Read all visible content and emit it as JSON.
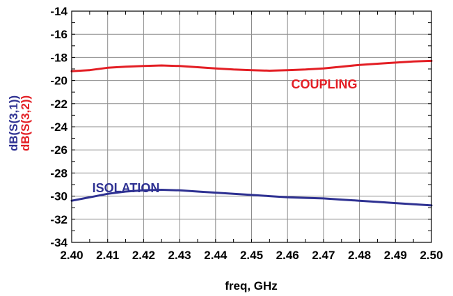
{
  "chart_data": {
    "type": "line",
    "xlabel": "freq, GHz",
    "ylabel_series": [
      {
        "text": "dB(S(3,1))",
        "color": "#2e3192"
      },
      {
        "text": "dB(S(3,2))",
        "color": "#e31e24"
      }
    ],
    "xlim": [
      2.4,
      2.5
    ],
    "ylim": [
      -34,
      -14
    ],
    "xticks": [
      2.4,
      2.41,
      2.42,
      2.43,
      2.44,
      2.45,
      2.46,
      2.47,
      2.48,
      2.49,
      2.5
    ],
    "xtick_labels": [
      "2.40",
      "2.41",
      "2.42",
      "2.43",
      "2.44",
      "2.45",
      "2.46",
      "2.47",
      "2.48",
      "2.49",
      "2.50"
    ],
    "yticks": [
      -14,
      -16,
      -18,
      -20,
      -22,
      -24,
      -26,
      -28,
      -30,
      -32,
      -34
    ],
    "ytick_labels": [
      "-14",
      "-16",
      "-18",
      "-20",
      "-22",
      "-24",
      "-26",
      "-28",
      "-30",
      "-32",
      "-34"
    ],
    "grid": true,
    "series": [
      {
        "name": "COUPLING",
        "color": "#e31e24",
        "x": [
          2.4,
          2.405,
          2.41,
          2.415,
          2.42,
          2.425,
          2.43,
          2.435,
          2.44,
          2.445,
          2.45,
          2.455,
          2.46,
          2.465,
          2.47,
          2.475,
          2.48,
          2.485,
          2.49,
          2.495,
          2.5
        ],
        "y": [
          -19.2,
          -19.1,
          -18.9,
          -18.8,
          -18.75,
          -18.7,
          -18.75,
          -18.85,
          -18.95,
          -19.05,
          -19.1,
          -19.15,
          -19.1,
          -19.05,
          -18.95,
          -18.8,
          -18.65,
          -18.55,
          -18.45,
          -18.35,
          -18.3
        ]
      },
      {
        "name": "ISOLATION",
        "color": "#2e3192",
        "x": [
          2.4,
          2.405,
          2.41,
          2.415,
          2.42,
          2.425,
          2.43,
          2.435,
          2.44,
          2.445,
          2.45,
          2.455,
          2.46,
          2.465,
          2.47,
          2.475,
          2.48,
          2.485,
          2.49,
          2.495,
          2.5
        ],
        "y": [
          -30.4,
          -30.1,
          -29.8,
          -29.6,
          -29.5,
          -29.45,
          -29.5,
          -29.6,
          -29.7,
          -29.8,
          -29.9,
          -30.0,
          -30.1,
          -30.15,
          -30.2,
          -30.3,
          -30.4,
          -30.5,
          -30.6,
          -30.7,
          -30.8
        ]
      }
    ]
  }
}
